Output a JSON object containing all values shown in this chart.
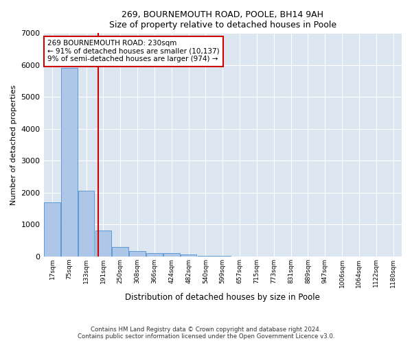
{
  "title1": "269, BOURNEMOUTH ROAD, POOLE, BH14 9AH",
  "title2": "Size of property relative to detached houses in Poole",
  "xlabel": "Distribution of detached houses by size in Poole",
  "ylabel": "Number of detached properties",
  "footer1": "Contains HM Land Registry data © Crown copyright and database right 2024.",
  "footer2": "Contains public sector information licensed under the Open Government Licence v3.0.",
  "bin_labels": [
    "17sqm",
    "75sqm",
    "133sqm",
    "191sqm",
    "250sqm",
    "308sqm",
    "366sqm",
    "424sqm",
    "482sqm",
    "540sqm",
    "599sqm",
    "657sqm",
    "715sqm",
    "773sqm",
    "831sqm",
    "889sqm",
    "947sqm",
    "1006sqm",
    "1064sqm",
    "1122sqm",
    "1180sqm"
  ],
  "bar_values": [
    1700,
    5900,
    2050,
    820,
    300,
    175,
    110,
    95,
    55,
    10,
    10,
    0,
    0,
    0,
    0,
    0,
    0,
    0,
    0,
    0,
    0
  ],
  "bar_color": "#aec6e8",
  "bar_edge_color": "#5b9bd5",
  "property_line_x": 2.68,
  "property_line_color": "#cc0000",
  "ylim": [
    0,
    7000
  ],
  "yticks": [
    0,
    1000,
    2000,
    3000,
    4000,
    5000,
    6000,
    7000
  ],
  "annotation_text": "269 BOURNEMOUTH ROAD: 230sqm\n← 91% of detached houses are smaller (10,137)\n9% of semi-detached houses are larger (974) →",
  "annotation_box_color": "#ffffff",
  "annotation_box_edge": "#cc0000",
  "plot_bg_color": "#dce6f1"
}
